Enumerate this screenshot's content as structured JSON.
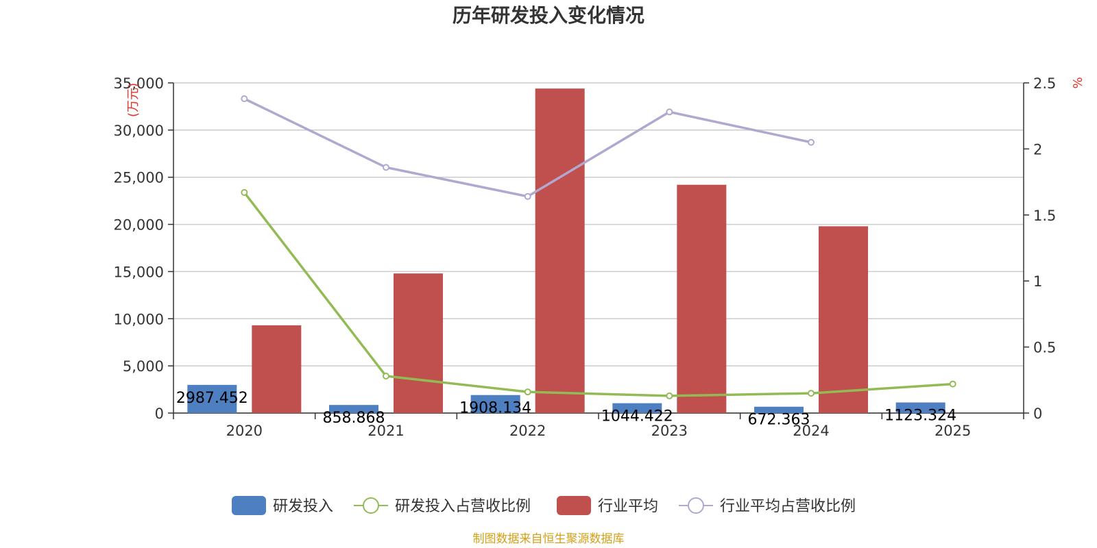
{
  "chart_data": {
    "type": "bar",
    "title": "历年研发投入变化情况",
    "categories": [
      "2020",
      "2021",
      "2022",
      "2023",
      "2024",
      "2025"
    ],
    "y_left": {
      "unit": "(万元)",
      "min": 0,
      "max": 35000,
      "ticks": [
        "0",
        "5,000",
        "10,000",
        "15,000",
        "20,000",
        "25,000",
        "30,000",
        "35,000"
      ]
    },
    "y_right": {
      "unit": "%",
      "min": 0,
      "max": 2.5,
      "ticks": [
        "0",
        "0.5",
        "1",
        "1.5",
        "2",
        "2.5"
      ]
    },
    "grid": true,
    "series": [
      {
        "name": "研发投入",
        "kind": "bar",
        "axis": "left",
        "color": "#4e7fc1",
        "values": [
          2987.452,
          858.868,
          1908.134,
          1044.422,
          672.363,
          1123.324
        ],
        "labels": [
          "2987.452",
          "858.868",
          "1908.134",
          "1044.422",
          "672.363",
          "1123.324"
        ]
      },
      {
        "name": "研发投入占营收比例",
        "kind": "line",
        "axis": "right",
        "color": "#93bb55",
        "values": [
          1.67,
          0.28,
          0.16,
          0.13,
          0.15,
          0.22
        ]
      },
      {
        "name": "行业平均",
        "kind": "bar",
        "axis": "left",
        "color": "#c0504d",
        "values": [
          9300,
          14800,
          34400,
          24200,
          19800,
          null
        ]
      },
      {
        "name": "行业平均占营收比例",
        "kind": "line",
        "axis": "right",
        "color": "#b2a7cf",
        "values": [
          2.38,
          1.86,
          1.64,
          2.28,
          2.05,
          null
        ]
      }
    ],
    "legend_position": "bottom"
  },
  "source_text": "制图数据来自恒生聚源数据库"
}
